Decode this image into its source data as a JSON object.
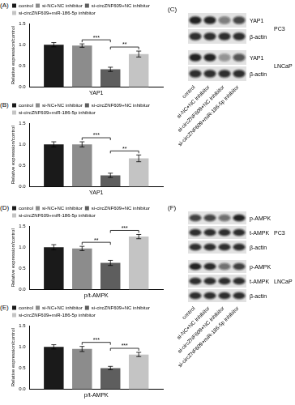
{
  "chart_data": [
    {
      "title": "(A)",
      "type": "bar",
      "categories": [
        "YAP1"
      ],
      "y_label": "Relative expression/control",
      "ylim": [
        0,
        1.5
      ],
      "yticks": [
        {
          "value": 0,
          "label": "0.0"
        },
        {
          "value": 0.5,
          "label": "0.5"
        },
        {
          "value": 1,
          "label": "1.0"
        },
        {
          "value": 1.5,
          "label": "1.5"
        }
      ],
      "grid": false,
      "legend": "top",
      "series": [
        {
          "name": "control",
          "color": "#1a1a1a",
          "values": [
            1.0
          ],
          "errors": [
            0.05
          ]
        },
        {
          "name": "si-NC+NC inhibitor",
          "color": "#8c8c8c",
          "values": [
            0.98
          ],
          "errors": [
            0.04
          ]
        },
        {
          "name": "si-circZNF609+NC inhibitor",
          "color": "#5e5e5e",
          "values": [
            0.42
          ],
          "errors": [
            0.05
          ]
        },
        {
          "name": "si-circZNF609+miR-186-5p inhibitor",
          "color": "#c4c4c4",
          "values": [
            0.78
          ],
          "errors": [
            0.07
          ]
        }
      ],
      "significance": [
        {
          "from": 1,
          "to": 2,
          "label": "***"
        },
        {
          "from": 2,
          "to": 3,
          "label": "**"
        }
      ]
    },
    {
      "title": "(B)",
      "type": "bar",
      "categories": [
        "YAP1"
      ],
      "y_label": "Relative expression/control",
      "ylim": [
        0,
        1.5
      ],
      "yticks": [
        {
          "value": 0,
          "label": "0.0"
        },
        {
          "value": 0.5,
          "label": "0.5"
        },
        {
          "value": 1,
          "label": "1.0"
        },
        {
          "value": 1.5,
          "label": "1.5"
        }
      ],
      "grid": false,
      "legend": "top",
      "series": [
        {
          "name": "control",
          "color": "#1a1a1a",
          "values": [
            1.0
          ],
          "errors": [
            0.06
          ]
        },
        {
          "name": "si-NC+NC inhibitor",
          "color": "#8c8c8c",
          "values": [
            1.0
          ],
          "errors": [
            0.06
          ]
        },
        {
          "name": "si-circZNF609+NC inhibitor",
          "color": "#5e5e5e",
          "values": [
            0.27
          ],
          "errors": [
            0.05
          ]
        },
        {
          "name": "si-circZNF609+miR-186-5p inhibitor",
          "color": "#c4c4c4",
          "values": [
            0.67
          ],
          "errors": [
            0.08
          ]
        }
      ],
      "significance": [
        {
          "from": 1,
          "to": 2,
          "label": "***"
        },
        {
          "from": 2,
          "to": 3,
          "label": "**"
        }
      ]
    },
    {
      "title": "(D)",
      "type": "bar",
      "categories": [
        "p/t-AMPK"
      ],
      "y_label": "Relative expression/control",
      "ylim": [
        0,
        1.5
      ],
      "yticks": [
        {
          "value": 0,
          "label": "0.0"
        },
        {
          "value": 0.5,
          "label": "0.5"
        },
        {
          "value": 1,
          "label": "1.0"
        },
        {
          "value": 1.5,
          "label": "1.5"
        }
      ],
      "grid": false,
      "legend": "top",
      "series": [
        {
          "name": "control",
          "color": "#1a1a1a",
          "values": [
            1.0
          ],
          "errors": [
            0.06
          ]
        },
        {
          "name": "si-NC+NC inhibitor",
          "color": "#8c8c8c",
          "values": [
            0.97
          ],
          "errors": [
            0.05
          ]
        },
        {
          "name": "si-circZNF609+NC inhibitor",
          "color": "#5e5e5e",
          "values": [
            0.63
          ],
          "errors": [
            0.06
          ]
        },
        {
          "name": "si-circZNF609+miR-186-5p inhibitor",
          "color": "#c4c4c4",
          "values": [
            1.25
          ],
          "errors": [
            0.05
          ]
        }
      ],
      "significance": [
        {
          "from": 1,
          "to": 2,
          "label": "**"
        },
        {
          "from": 2,
          "to": 3,
          "label": "***"
        }
      ]
    },
    {
      "title": "(E)",
      "type": "bar",
      "categories": [
        "p/t-AMPK"
      ],
      "y_label": "Relative expression/control",
      "ylim": [
        0,
        1.5
      ],
      "yticks": [
        {
          "value": 0,
          "label": "0.0"
        },
        {
          "value": 0.5,
          "label": "0.5"
        },
        {
          "value": 1,
          "label": "1.0"
        },
        {
          "value": 1.5,
          "label": "1.5"
        }
      ],
      "grid": false,
      "legend": "top",
      "series": [
        {
          "name": "control",
          "color": "#1a1a1a",
          "values": [
            1.0
          ],
          "errors": [
            0.05
          ]
        },
        {
          "name": "si-NC+NC inhibitor",
          "color": "#8c8c8c",
          "values": [
            0.95
          ],
          "errors": [
            0.06
          ]
        },
        {
          "name": "si-circZNF609+NC inhibitor",
          "color": "#5e5e5e",
          "values": [
            0.5
          ],
          "errors": [
            0.04
          ]
        },
        {
          "name": "si-circZNF609+miR-186-5p inhibitor",
          "color": "#c4c4c4",
          "values": [
            0.82
          ],
          "errors": [
            0.05
          ]
        }
      ],
      "significance": [
        {
          "from": 1,
          "to": 2,
          "label": "***"
        },
        {
          "from": 2,
          "to": 3,
          "label": "***"
        }
      ]
    }
  ],
  "blot_panels": [
    {
      "title": "(C)",
      "lanes": [
        "control",
        "si-NC+NC inhibitor",
        "si-circZNF609+NC inhibitor",
        "si-circZNF609+miR-186-5p inhibitor"
      ],
      "groups": [
        {
          "label": "PC3",
          "rows": [
            {
              "label": "YAP1",
              "from_chart": "(A)"
            },
            {
              "label": "β-actin"
            }
          ]
        },
        {
          "label": "LNCaP",
          "rows": [
            {
              "label": "YAP1",
              "from_chart": "(B)"
            },
            {
              "label": "β-actin"
            }
          ]
        }
      ]
    },
    {
      "title": "(F)",
      "lanes": [
        "control",
        "si-NC+NC inhibitor",
        "si-circZNF609+NC inhibitor",
        "si-circZNF609+miR-186-5p inhibitor"
      ],
      "groups": [
        {
          "label": "PC3",
          "rows": [
            {
              "label": "p-AMPK",
              "from_chart": "(D)"
            },
            {
              "label": "t-AMPK"
            },
            {
              "label": "β-actin"
            }
          ]
        },
        {
          "label": "LNCaP",
          "rows": [
            {
              "label": "p-AMPK",
              "from_chart": "(E)"
            },
            {
              "label": "t-AMPK"
            },
            {
              "label": "β-actin"
            }
          ]
        }
      ]
    }
  ]
}
